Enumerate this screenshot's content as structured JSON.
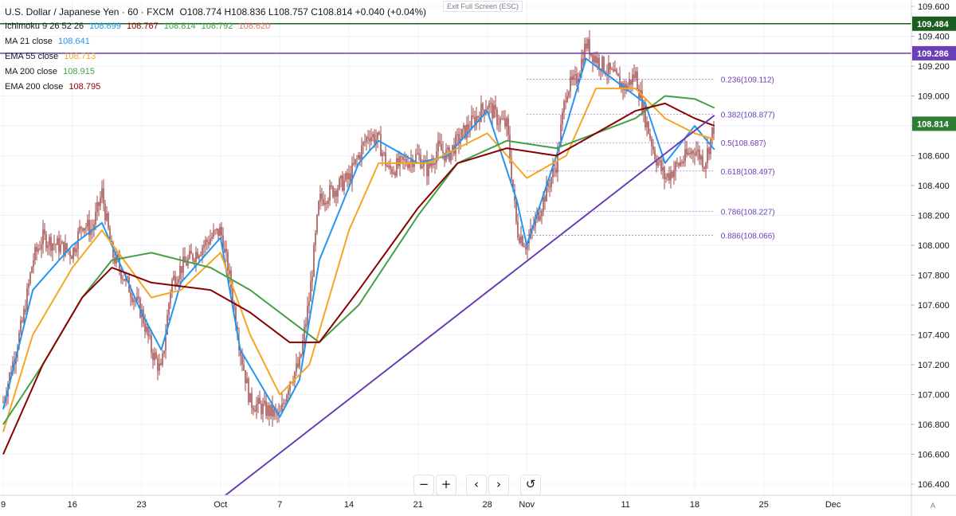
{
  "header": {
    "symbol": "U.S. Dollar / Japanese Yen · 60 · FXCM",
    "ohlc": "O108.774 H108.836 L108.757 C108.814 +0.040 (+0.04%)",
    "exit_fullscreen": "Exit Full Screen (ESC)"
  },
  "legend": {
    "ichimoku": {
      "label": "Ichimoku 9 26 52 26",
      "v1": "108.699",
      "v2": "108.767",
      "v3": "108.814",
      "v4": "108.792",
      "v5": "108.620"
    },
    "ma21": {
      "label": "MA 21 close",
      "value": "108.641"
    },
    "ema55": {
      "label": "EMA 55 close",
      "value": "108.713"
    },
    "ma200": {
      "label": "MA 200 close",
      "value": "108.915"
    },
    "ema200": {
      "label": "EMA 200 close",
      "value": "108.795"
    }
  },
  "controls": {
    "zoom_out": "−",
    "zoom_in": "+",
    "back": "‹",
    "forward": "›",
    "reset": "↺"
  },
  "auto_label": "A",
  "colors": {
    "candle": "#8b1a1a",
    "ma21": "#2196f3",
    "ema55": "#f5a623",
    "ma200": "#43a047",
    "ema200": "#8b0000",
    "trend": "#6a3fb5",
    "hline_green": "#1b5e20",
    "hline_purple": "#6a3fb5",
    "fib": "#6a3fb5",
    "cloud_green": "#c8e6c9",
    "cloud_red": "#ffcdd2"
  },
  "chart_data": {
    "type": "candlestick",
    "symbol": "USD/JPY",
    "timeframe": "60",
    "ylim": [
      106.3,
      109.6
    ],
    "y_ticks": [
      106.4,
      106.6,
      106.8,
      107.0,
      107.2,
      107.4,
      107.6,
      107.8,
      108.0,
      108.2,
      108.4,
      108.6,
      108.8,
      109.0,
      109.2,
      109.4,
      109.6
    ],
    "x_ticks": [
      "9",
      "16",
      "23",
      "Oct",
      "7",
      "14",
      "21",
      "28",
      "Nov",
      "11",
      "18",
      "25",
      "Dec"
    ],
    "price_labels": [
      {
        "value": 109.484,
        "text": "109.484",
        "color": "#1b5e20"
      },
      {
        "value": 109.286,
        "text": "109.286",
        "color": "#6a3fb5"
      },
      {
        "value": 108.814,
        "text": "108.814",
        "color": "#2e7d32"
      }
    ],
    "horizontal_lines": [
      {
        "value": 109.484,
        "color": "#1b5e20"
      },
      {
        "value": 109.286,
        "color": "#6a3fb5"
      }
    ],
    "trendline": {
      "from": [
        "Oct 1",
        106.3
      ],
      "to": [
        "Nov 20",
        108.87
      ]
    },
    "fibonacci": [
      {
        "label": "0.236(109.112)",
        "value": 109.112
      },
      {
        "label": "0.382(108.877)",
        "value": 108.877
      },
      {
        "label": "0.5(108.687)",
        "value": 108.687
      },
      {
        "label": "0.618(108.497)",
        "value": 108.497
      },
      {
        "label": "0.786(108.227)",
        "value": 108.227
      },
      {
        "label": "0.886(108.066)",
        "value": 108.066
      }
    ],
    "fib_range_dates": [
      "Nov 1",
      "Nov 20"
    ],
    "price_path": [
      [
        "Sep 9",
        106.95
      ],
      [
        "Sep 11",
        107.5
      ],
      [
        "Sep 12",
        107.9
      ],
      [
        "Sep 13",
        108.05
      ],
      [
        "Sep 16",
        107.95
      ],
      [
        "Sep 17",
        108.15
      ],
      [
        "Sep 18",
        108.1
      ],
      [
        "Sep 19",
        108.35
      ],
      [
        "Sep 20",
        107.95
      ],
      [
        "Sep 23",
        107.55
      ],
      [
        "Sep 24",
        107.3
      ],
      [
        "Sep 25",
        107.15
      ],
      [
        "Sep 26",
        107.75
      ],
      [
        "Sep 27",
        107.85
      ],
      [
        "Sep 30",
        108.05
      ],
      [
        "Oct 1",
        108.1
      ],
      [
        "Oct 2",
        107.75
      ],
      [
        "Oct 3",
        107.3
      ],
      [
        "Oct 4",
        106.95
      ],
      [
        "Oct 7",
        106.85
      ],
      [
        "Oct 8",
        107.1
      ],
      [
        "Oct 9",
        107.2
      ],
      [
        "Oct 10",
        107.65
      ],
      [
        "Oct 11",
        108.3
      ],
      [
        "Oct 14",
        108.45
      ],
      [
        "Oct 15",
        108.6
      ],
      [
        "Oct 16",
        108.75
      ],
      [
        "Oct 17",
        108.7
      ],
      [
        "Oct 18",
        108.5
      ],
      [
        "Oct 21",
        108.6
      ],
      [
        "Oct 22",
        108.5
      ],
      [
        "Oct 23",
        108.65
      ],
      [
        "Oct 24",
        108.6
      ],
      [
        "Oct 25",
        108.7
      ],
      [
        "Oct 28",
        108.95
      ],
      [
        "Oct 29",
        108.85
      ],
      [
        "Oct 30",
        108.8
      ],
      [
        "Oct 31",
        108.1
      ],
      [
        "Nov 1",
        108.0
      ],
      [
        "Nov 4",
        108.55
      ],
      [
        "Nov 5",
        109.05
      ],
      [
        "Nov 6",
        109.1
      ],
      [
        "Nov 7",
        109.35
      ],
      [
        "Nov 8",
        109.25
      ],
      [
        "Nov 11",
        109.05
      ],
      [
        "Nov 12",
        109.15
      ],
      [
        "Nov 13",
        108.85
      ],
      [
        "Nov 14",
        108.6
      ],
      [
        "Nov 15",
        108.45
      ],
      [
        "Nov 18",
        108.65
      ],
      [
        "Nov 19",
        108.55
      ],
      [
        "Nov 20",
        108.81
      ]
    ],
    "series": [
      {
        "name": "MA 21 close",
        "color": "#2196f3",
        "points": [
          [
            "Sep 9",
            106.9
          ],
          [
            "Sep 12",
            107.7
          ],
          [
            "Sep 16",
            108.0
          ],
          [
            "Sep 19",
            108.15
          ],
          [
            "Sep 23",
            107.55
          ],
          [
            "Sep 25",
            107.3
          ],
          [
            "Sep 27",
            107.75
          ],
          [
            "Oct 1",
            108.05
          ],
          [
            "Oct 3",
            107.3
          ],
          [
            "Oct 7",
            106.85
          ],
          [
            "Oct 9",
            107.1
          ],
          [
            "Oct 11",
            107.9
          ],
          [
            "Oct 15",
            108.55
          ],
          [
            "Oct 17",
            108.7
          ],
          [
            "Oct 21",
            108.55
          ],
          [
            "Oct 24",
            108.6
          ],
          [
            "Oct 28",
            108.9
          ],
          [
            "Oct 31",
            108.3
          ],
          [
            "Nov 1",
            108.0
          ],
          [
            "Nov 5",
            108.8
          ],
          [
            "Nov 7",
            109.25
          ],
          [
            "Nov 11",
            109.05
          ],
          [
            "Nov 13",
            108.95
          ],
          [
            "Nov 15",
            108.55
          ],
          [
            "Nov 18",
            108.8
          ],
          [
            "Nov 20",
            108.64
          ]
        ]
      },
      {
        "name": "EMA 55 close",
        "color": "#f5a623",
        "points": [
          [
            "Sep 9",
            106.75
          ],
          [
            "Sep 12",
            107.4
          ],
          [
            "Sep 16",
            107.85
          ],
          [
            "Sep 19",
            108.1
          ],
          [
            "Sep 24",
            107.65
          ],
          [
            "Sep 27",
            107.7
          ],
          [
            "Oct 1",
            107.95
          ],
          [
            "Oct 4",
            107.4
          ],
          [
            "Oct 7",
            107.0
          ],
          [
            "Oct 10",
            107.2
          ],
          [
            "Oct 14",
            108.1
          ],
          [
            "Oct 17",
            108.55
          ],
          [
            "Oct 22",
            108.55
          ],
          [
            "Oct 28",
            108.75
          ],
          [
            "Nov 1",
            108.45
          ],
          [
            "Nov 5",
            108.6
          ],
          [
            "Nov 8",
            109.05
          ],
          [
            "Nov 12",
            109.05
          ],
          [
            "Nov 15",
            108.85
          ],
          [
            "Nov 18",
            108.75
          ],
          [
            "Nov 20",
            108.71
          ]
        ]
      },
      {
        "name": "MA 200 close",
        "color": "#43a047",
        "points": [
          [
            "Sep 9",
            106.8
          ],
          [
            "Sep 13",
            107.2
          ],
          [
            "Sep 17",
            107.65
          ],
          [
            "Sep 20",
            107.9
          ],
          [
            "Sep 24",
            107.95
          ],
          [
            "Sep 30",
            107.85
          ],
          [
            "Oct 4",
            107.7
          ],
          [
            "Oct 8",
            107.5
          ],
          [
            "Oct 11",
            107.35
          ],
          [
            "Oct 15",
            107.6
          ],
          [
            "Oct 21",
            108.2
          ],
          [
            "Oct 25",
            108.55
          ],
          [
            "Oct 30",
            108.7
          ],
          [
            "Nov 4",
            108.65
          ],
          [
            "Nov 8",
            108.75
          ],
          [
            "Nov 12",
            108.85
          ],
          [
            "Nov 15",
            109.0
          ],
          [
            "Nov 18",
            108.98
          ],
          [
            "Nov 20",
            108.92
          ]
        ]
      },
      {
        "name": "EMA 200 close",
        "color": "#8b0000",
        "points": [
          [
            "Sep 9",
            106.6
          ],
          [
            "Sep 13",
            107.2
          ],
          [
            "Sep 17",
            107.65
          ],
          [
            "Sep 20",
            107.85
          ],
          [
            "Sep 24",
            107.75
          ],
          [
            "Sep 30",
            107.7
          ],
          [
            "Oct 4",
            107.55
          ],
          [
            "Oct 8",
            107.35
          ],
          [
            "Oct 11",
            107.35
          ],
          [
            "Oct 15",
            107.7
          ],
          [
            "Oct 21",
            108.25
          ],
          [
            "Oct 25",
            108.55
          ],
          [
            "Oct 30",
            108.65
          ],
          [
            "Nov 4",
            108.6
          ],
          [
            "Nov 8",
            108.75
          ],
          [
            "Nov 12",
            108.9
          ],
          [
            "Nov 15",
            108.95
          ],
          [
            "Nov 18",
            108.85
          ],
          [
            "Nov 20",
            108.8
          ]
        ]
      }
    ]
  }
}
